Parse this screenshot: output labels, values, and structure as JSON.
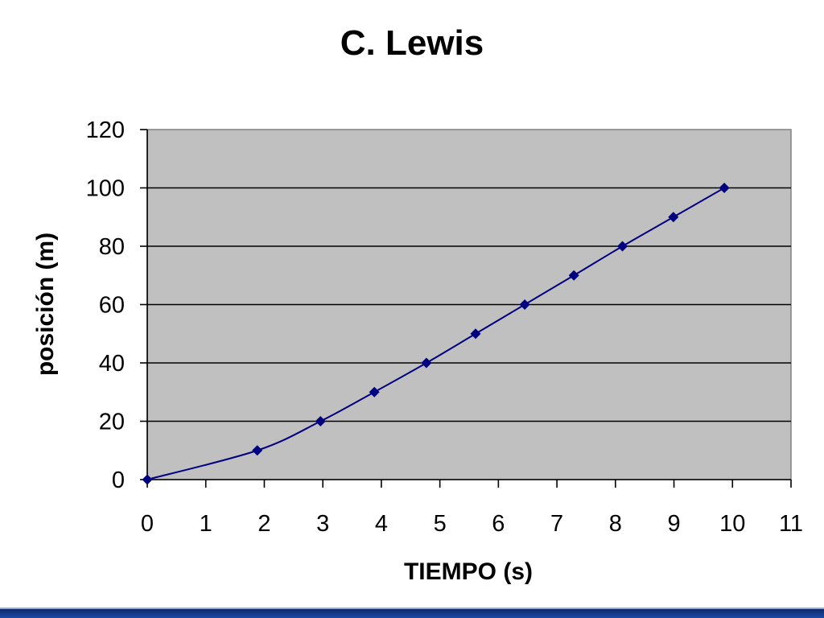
{
  "chart_data": {
    "type": "line",
    "title": "C. Lewis",
    "xlabel": "TIEMPO (s)",
    "ylabel": "posición (m)",
    "xlim": [
      0,
      11
    ],
    "ylim": [
      0,
      120
    ],
    "x_ticks": [
      0,
      1,
      2,
      3,
      4,
      5,
      6,
      7,
      8,
      9,
      10,
      11
    ],
    "y_ticks": [
      0,
      20,
      40,
      60,
      80,
      100,
      120
    ],
    "grid": "horizontal",
    "legend": "none",
    "colors": {
      "line": "#000080",
      "plot_bg": "#c0c0c0",
      "grid": "#000000"
    },
    "series": [
      {
        "x": [
          0,
          1.88,
          2.96,
          3.88,
          4.77,
          5.61,
          6.45,
          7.29,
          8.12,
          8.99,
          9.86
        ],
        "y": [
          0,
          10,
          20,
          30,
          40,
          50,
          60,
          70,
          80,
          90,
          100
        ]
      }
    ]
  }
}
